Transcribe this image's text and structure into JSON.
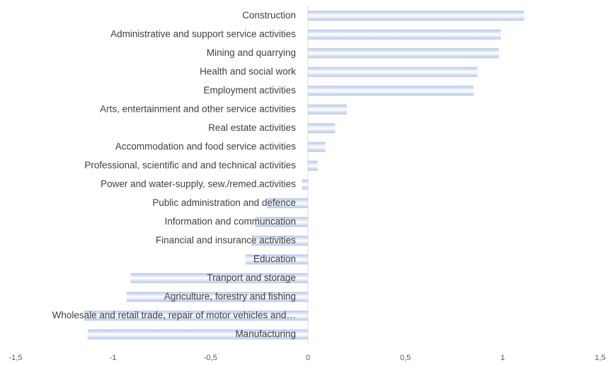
{
  "chart_data": {
    "type": "bar",
    "orientation": "horizontal",
    "categories": [
      "Construction",
      "Administrative and support service activities",
      "Mining and quarrying",
      "Health and social work",
      "Employment activities",
      "Arts, entertainment and other service activities",
      "Real estate activities",
      "Accommodation and food service activities",
      "Professional, scientific and and technical activities",
      "Power and water-supply, sew./remed.activities",
      "Public administration and defence",
      "Information and communcation",
      "Financial and insurance activities",
      "Education",
      "Tranport and storage",
      "Agriculture, forestry and fishing",
      "Wholesale and retail trade, repair of motor vehicles and…",
      "Manufacturing"
    ],
    "values": [
      1.11,
      0.99,
      0.98,
      0.87,
      0.85,
      0.2,
      0.14,
      0.09,
      0.05,
      -0.03,
      -0.21,
      -0.27,
      -0.29,
      -0.32,
      -0.91,
      -0.93,
      -1.15,
      -1.13
    ],
    "color": "#b4c7e7",
    "xlim": [
      -1.5,
      1.5
    ],
    "xticks": [
      {
        "value": -1.5,
        "label": "-1,5"
      },
      -1,
      {
        "value": -0.5,
        "label": "-0,5"
      },
      0,
      {
        "value": 0.5,
        "label": "0,5"
      },
      1,
      {
        "value": 1.5,
        "label": "1,5"
      }
    ],
    "grid": false
  }
}
